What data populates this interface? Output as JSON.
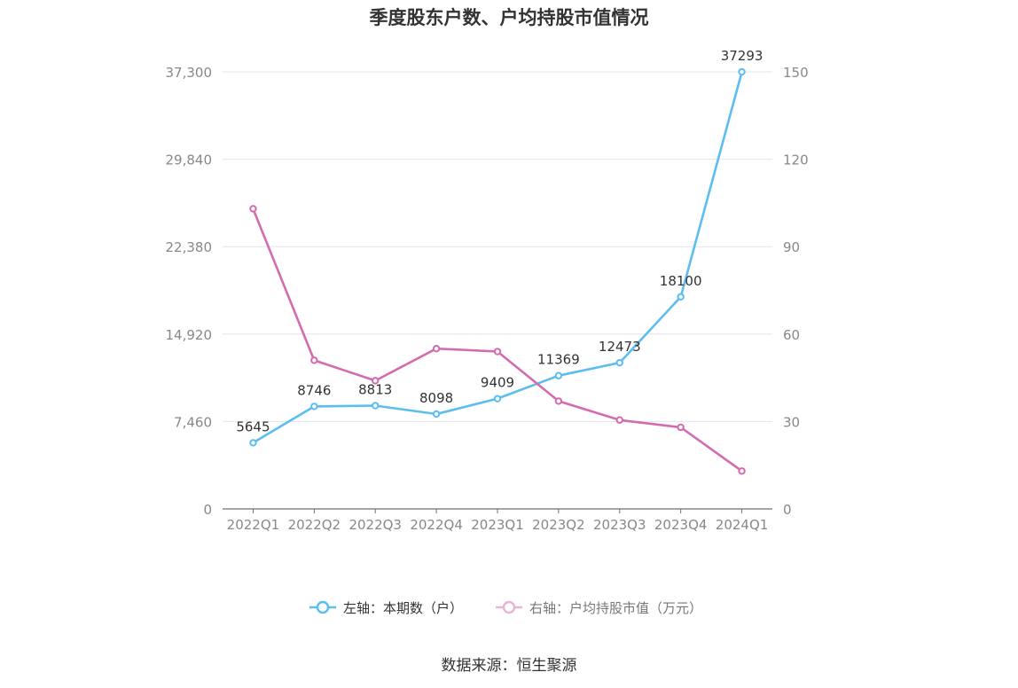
{
  "chart_data": {
    "type": "line",
    "title": "季度股东户数、户均持股市值情况",
    "source": "数据来源：恒生聚源",
    "categories": [
      "2022Q1",
      "2022Q2",
      "2022Q3",
      "2022Q4",
      "2023Q1",
      "2023Q2",
      "2023Q3",
      "2023Q4",
      "2024Q1"
    ],
    "left_axis": {
      "min": 0,
      "max": 37300,
      "ticks": [
        0,
        7460,
        14920,
        22380,
        29840,
        37300
      ],
      "tick_labels": [
        "0",
        "7,460",
        "14,920",
        "22,380",
        "29,840",
        "37,300"
      ]
    },
    "right_axis": {
      "min": 0,
      "max": 150,
      "ticks": [
        0,
        30,
        60,
        90,
        120,
        150
      ],
      "tick_labels": [
        "0",
        "30",
        "60",
        "90",
        "120",
        "150"
      ]
    },
    "series": [
      {
        "name": "左轴：本期数（户）",
        "axis": "left",
        "color": "#5bbdf0",
        "values": [
          5645,
          8746,
          8813,
          8098,
          9409,
          11369,
          12473,
          18100,
          37293
        ],
        "labels": [
          "5645",
          "8746",
          "8813",
          "8098",
          "9409",
          "11369",
          "12473",
          "18100",
          "37293"
        ]
      },
      {
        "name": "右轴：户均持股市值（万元）",
        "axis": "right",
        "color": "#d46bb0",
        "values": [
          103,
          51,
          44,
          55,
          54,
          37,
          30.5,
          28,
          13
        ]
      }
    ],
    "grid": true,
    "legend_position": "bottom"
  }
}
